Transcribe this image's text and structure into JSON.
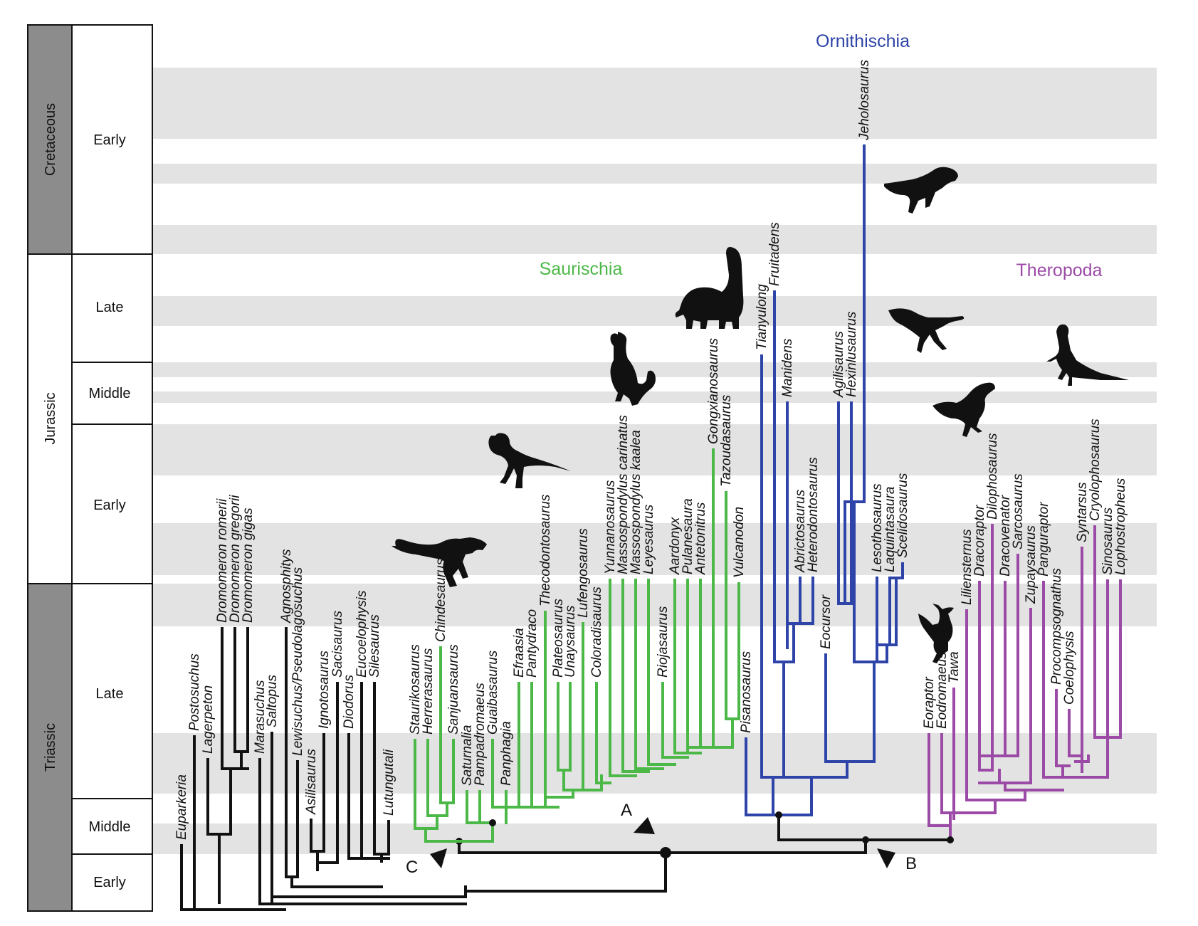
{
  "colors": {
    "black": "#111111",
    "green": "#4cb848",
    "blue": "#2e44a8",
    "purple": "#9b4aa6",
    "band": "#e3e3e3",
    "period_fill": "#8c8c8c"
  },
  "timescale": {
    "periods": [
      {
        "name": "Cretaceous",
        "shaded": true
      },
      {
        "name": "Jurassic",
        "shaded": false
      },
      {
        "name": "Triassic",
        "shaded": true
      }
    ],
    "epochs": [
      "Early",
      "Late",
      "Middle",
      "Early",
      "Late",
      "Middle",
      "Early"
    ]
  },
  "clades": {
    "saurischia": "Saurischia",
    "ornithischia": "Ornithischia",
    "theropoda": "Theropoda"
  },
  "node_labels": {
    "a": "A",
    "b": "B",
    "c": "C"
  },
  "silhouettes": [
    "tyrannosaur-icon",
    "theropod-icon",
    "prosauropod-icon",
    "sauropod-icon",
    "ornithopod-icon",
    "heterodontosaur-icon",
    "coelophysoid-icon",
    "dilophosaur-icon",
    "herrerasaur-icon",
    "pachycephalosaur-icon"
  ],
  "taxa": {
    "outgroup": [
      "Euparkeria",
      "Postosuchus",
      "Lagerpeton",
      "Dromomeron romerii",
      "Dromomeron gregorii",
      "Dromomeron gigas",
      "Marasuchus",
      "Saltopus",
      "Agnosphitys",
      "Lewisuchus/Pseudolagosuchus",
      "Asilisaurus",
      "Ignotosaurus",
      "Sacisaurus",
      "Diodorus",
      "Eucoelophysis",
      "Silesaurus",
      "Lutungutali"
    ],
    "saurischia": [
      "Staurikosaurus",
      "Herrerasaurus",
      "Chindesaurus",
      "Sanjuansaurus",
      "Saturnalia",
      "Pampadromaeus",
      "Guaibasaurus",
      "Panphagia",
      "Efraasia",
      "Pantydraco",
      "Thecodontosaurus",
      "Plateosaurus",
      "Unaysaurus",
      "Lufengosaurus",
      "Coloradisaurus",
      "Yunnanosaurus",
      "Massospondylus carinatus",
      "Massospondylus kaalea",
      "Leyesaurus",
      "Riojasaurus",
      "Aardonyx",
      "Pulanesaura",
      "Antetonitrus",
      "Gongxianosaurus",
      "Tazoudasaurus",
      "Vulcanodon"
    ],
    "ornithischia": [
      "Pisanosaurus",
      "Tianyulong",
      "Fruitadens",
      "Manidens",
      "Abrictosaurus",
      "Heterodontosaurus",
      "Eocursor",
      "Agilisaurus",
      "Hexinlusaurus",
      "Jeholosaurus",
      "Lesothosaurus",
      "Laquintasaura",
      "Scelidosaurus"
    ],
    "theropoda": [
      "Eoraptor",
      "Eodromaeus",
      "Tawa",
      "Liliensternus",
      "Dracoraptor",
      "Dilophosaurus",
      "Dracovenator",
      "Sarcosaurus",
      "Zupaysaurus",
      "Panguraptor",
      "Procompsognathus",
      "Coelophysis",
      "Syntarsus",
      "Cryolophosaurus",
      "Sinosaurus",
      "Lophostropheus"
    ]
  }
}
